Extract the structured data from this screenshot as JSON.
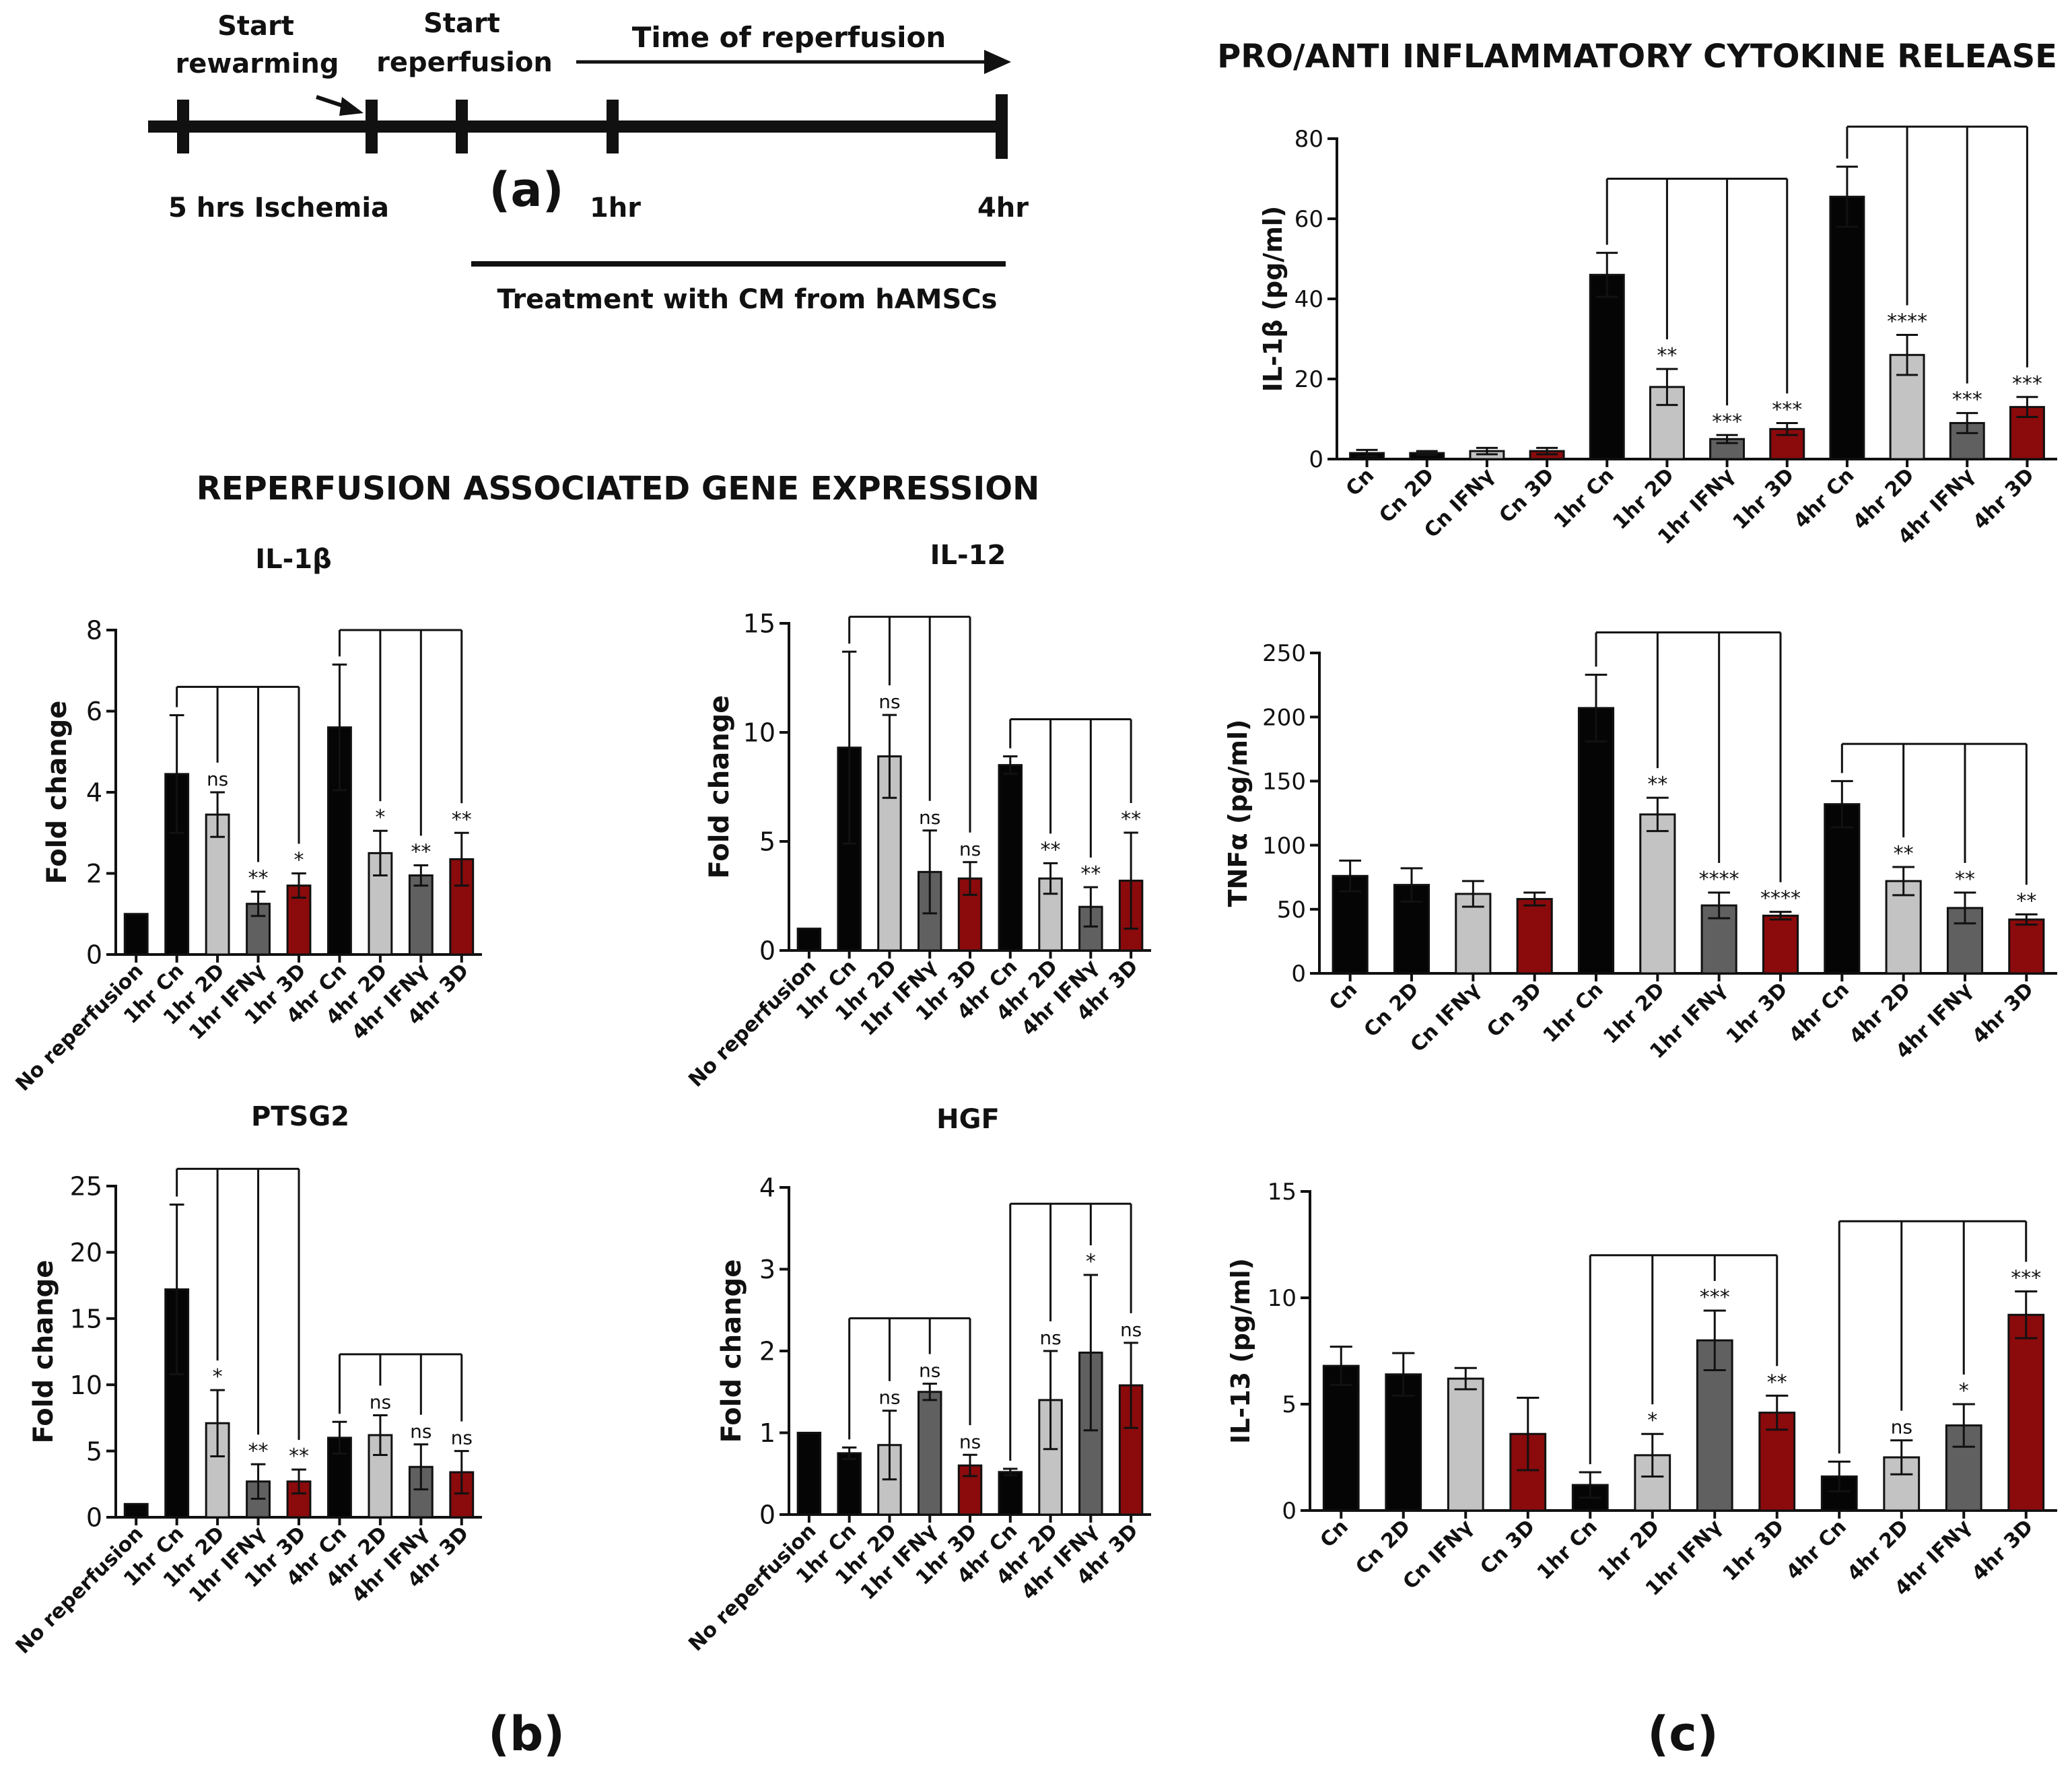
{
  "colors": {
    "black": "#050505",
    "lightgray": "#c3c3c3",
    "darkgray": "#606060",
    "red": "#8b0a0c",
    "axis": "#111111"
  },
  "timeline": {
    "label_start_rewarming": "Start rewarming",
    "label_start_reperfusion": "Start reperfusion",
    "label_time_of_reperfusion": "Time of reperfusion",
    "label_ischemia": "5 hrs Ischemia",
    "label_1hr": "1hr",
    "label_4hr": "4hr",
    "label_treatment": "Treatment with CM from hAMSCs",
    "panel_a": "(a)"
  },
  "section_b_title": "REPERFUSION ASSOCIATED GENE EXPRESSION",
  "section_c_title": "PRO/ANTI INFLAMMATORY CYTOKINE RELEASE",
  "panel_b": "(b)",
  "panel_c": "(c)",
  "chart_data": [
    {
      "id": "il1b_gene",
      "type": "bar",
      "title": "IL-1β",
      "ylabel": "Fold change",
      "ylim": [
        0,
        8
      ],
      "yticks": [
        0,
        2,
        4,
        6,
        8
      ],
      "categories": [
        "No reperfusion",
        "1hr Cn",
        "1hr 2D",
        "1hr IFNγ",
        "1hr 3D",
        "4hr Cn",
        "4hr 2D",
        "4hr IFNγ",
        "4hr 3D"
      ],
      "values": [
        1.0,
        4.45,
        3.45,
        1.25,
        1.7,
        5.6,
        2.5,
        1.95,
        2.35
      ],
      "errors": [
        0,
        1.45,
        0.55,
        0.3,
        0.3,
        1.55,
        0.55,
        0.25,
        0.65
      ],
      "colors": [
        "black",
        "black",
        "lightgray",
        "darkgray",
        "red",
        "black",
        "lightgray",
        "darkgray",
        "red"
      ],
      "significance": [
        "",
        "",
        "ns",
        "**",
        "*",
        "",
        "*",
        "**",
        "**"
      ],
      "brackets": [
        {
          "from": 1,
          "to": [
            2,
            3,
            4
          ],
          "level": 6.6
        },
        {
          "from": 5,
          "to": [
            6,
            7,
            8
          ],
          "level": 8.0
        }
      ]
    },
    {
      "id": "il12_gene",
      "type": "bar",
      "title": "IL-12",
      "ylabel": "Fold change",
      "ylim": [
        0,
        15
      ],
      "yticks": [
        0,
        5,
        10,
        15
      ],
      "categories": [
        "No reperfusion",
        "1hr Cn",
        "1hr 2D",
        "1hr IFNγ",
        "1hr 3D",
        "4hr Cn",
        "4hr 2D",
        "4hr IFNγ",
        "4hr 3D"
      ],
      "values": [
        1.0,
        9.3,
        8.9,
        3.6,
        3.3,
        8.5,
        3.3,
        2.0,
        3.2
      ],
      "errors": [
        0,
        4.4,
        1.9,
        1.9,
        0.75,
        0.4,
        0.7,
        0.9,
        2.2
      ],
      "colors": [
        "black",
        "black",
        "lightgray",
        "darkgray",
        "red",
        "black",
        "lightgray",
        "darkgray",
        "red"
      ],
      "significance": [
        "",
        "",
        "ns",
        "ns",
        "ns",
        "",
        "**",
        "**",
        "**"
      ],
      "brackets": [
        {
          "from": 1,
          "to": [
            2,
            3,
            4
          ],
          "level": 15.3
        },
        {
          "from": 5,
          "to": [
            6,
            7,
            8
          ],
          "level": 10.6
        }
      ]
    },
    {
      "id": "ptsg2_gene",
      "type": "bar",
      "title": "PTSG2",
      "ylabel": "Fold change",
      "ylim": [
        0,
        25
      ],
      "yticks": [
        0,
        5,
        10,
        15,
        20,
        25
      ],
      "categories": [
        "No reperfusion",
        "1hr Cn",
        "1hr 2D",
        "1hr IFNγ",
        "1hr 3D",
        "4hr Cn",
        "4hr 2D",
        "4hr IFNγ",
        "4hr 3D"
      ],
      "values": [
        1.0,
        17.2,
        7.1,
        2.7,
        2.7,
        6.0,
        6.2,
        3.8,
        3.4
      ],
      "errors": [
        0,
        6.4,
        2.5,
        1.3,
        0.9,
        1.2,
        1.5,
        1.7,
        1.6
      ],
      "colors": [
        "black",
        "black",
        "lightgray",
        "darkgray",
        "red",
        "black",
        "lightgray",
        "darkgray",
        "red"
      ],
      "significance": [
        "",
        "",
        "*",
        "**",
        "**",
        "",
        "ns",
        "ns",
        "ns"
      ],
      "brackets": [
        {
          "from": 1,
          "to": [
            2,
            3,
            4
          ],
          "level": 26.3
        },
        {
          "from": 5,
          "to": [
            6,
            7,
            8
          ],
          "level": 12.3
        }
      ]
    },
    {
      "id": "hgf_gene",
      "type": "bar",
      "title": "HGF",
      "ylabel": "Fold change",
      "ylim": [
        0,
        4
      ],
      "yticks": [
        0,
        1,
        2,
        3,
        4
      ],
      "categories": [
        "No reperfusion",
        "1hr Cn",
        "1hr 2D",
        "1hr IFNγ",
        "1hr 3D",
        "4hr Cn",
        "4hr 2D",
        "4hr IFNγ",
        "4hr 3D"
      ],
      "values": [
        1.0,
        0.75,
        0.85,
        1.5,
        0.6,
        0.52,
        1.4,
        1.98,
        1.58
      ],
      "errors": [
        0,
        0.07,
        0.42,
        0.1,
        0.13,
        0.04,
        0.6,
        0.95,
        0.52
      ],
      "colors": [
        "black",
        "black",
        "lightgray",
        "darkgray",
        "red",
        "black",
        "lightgray",
        "darkgray",
        "red"
      ],
      "significance": [
        "",
        "",
        "ns",
        "ns",
        "ns",
        "",
        "ns",
        "*",
        "ns"
      ],
      "brackets": [
        {
          "from": 1,
          "to": [
            2,
            3,
            4
          ],
          "level": 2.4
        },
        {
          "from": 5,
          "to": [
            6,
            7,
            8
          ],
          "level": 3.8
        }
      ]
    },
    {
      "id": "il1b_release",
      "type": "bar",
      "title": "",
      "ylabel": "IL-1β (pg/ml)",
      "ylim": [
        0,
        80
      ],
      "yticks": [
        0,
        20,
        40,
        60,
        80
      ],
      "categories": [
        "Cn",
        "Cn 2D",
        "Cn IFNγ",
        "Cn 3D",
        "1hr Cn",
        "1hr 2D",
        "1hr IFNγ",
        "1hr 3D",
        "4hr Cn",
        "4hr 2D",
        "4hr IFNγ",
        "4hr 3D"
      ],
      "values": [
        1.5,
        1.5,
        2.0,
        2.0,
        46.0,
        18.0,
        5.0,
        7.5,
        65.5,
        26.0,
        9.0,
        13.0
      ],
      "errors": [
        0.8,
        0.5,
        0.8,
        0.8,
        5.5,
        4.5,
        1.0,
        1.5,
        7.5,
        5.0,
        2.5,
        2.5
      ],
      "colors": [
        "black",
        "black",
        "lightgray",
        "red",
        "black",
        "lightgray",
        "darkgray",
        "red",
        "black",
        "lightgray",
        "darkgray",
        "red"
      ],
      "significance": [
        "",
        "",
        "",
        "",
        "",
        "**",
        "***",
        "***",
        "",
        "****",
        "***",
        "***"
      ],
      "brackets": [
        {
          "from": 4,
          "to": [
            5,
            6,
            7
          ],
          "level": 70.0
        },
        {
          "from": 8,
          "to": [
            9,
            10,
            11
          ],
          "level": 83.0
        }
      ]
    },
    {
      "id": "tnfa_release",
      "type": "bar",
      "title": "",
      "ylabel": "TNFα (pg/ml)",
      "ylim": [
        0,
        250
      ],
      "yticks": [
        0,
        50,
        100,
        150,
        200,
        250
      ],
      "categories": [
        "Cn",
        "Cn 2D",
        "Cn IFNγ",
        "Cn 3D",
        "1hr Cn",
        "1hr 2D",
        "1hr IFNγ",
        "1hr 3D",
        "4hr Cn",
        "4hr 2D",
        "4hr IFNγ",
        "4hr 3D"
      ],
      "values": [
        76,
        69,
        62,
        58,
        207,
        124,
        53,
        45,
        132,
        72,
        51,
        42
      ],
      "errors": [
        12,
        13,
        10,
        5,
        26,
        13,
        10,
        3,
        18,
        11,
        12,
        4
      ],
      "colors": [
        "black",
        "black",
        "lightgray",
        "red",
        "black",
        "lightgray",
        "darkgray",
        "red",
        "black",
        "lightgray",
        "darkgray",
        "red"
      ],
      "significance": [
        "",
        "",
        "",
        "",
        "",
        "**",
        "****",
        "****",
        "",
        "**",
        "**",
        "**"
      ],
      "brackets": [
        {
          "from": 4,
          "to": [
            5,
            6,
            7
          ],
          "level": 266
        },
        {
          "from": 8,
          "to": [
            9,
            10,
            11
          ],
          "level": 179
        }
      ]
    },
    {
      "id": "il13_release",
      "type": "bar",
      "title": "",
      "ylabel": "IL-13 (pg/ml)",
      "ylim": [
        0,
        15
      ],
      "yticks": [
        0,
        5,
        10,
        15
      ],
      "categories": [
        "Cn",
        "Cn 2D",
        "Cn IFNγ",
        "Cn 3D",
        "1hr Cn",
        "1hr 2D",
        "1hr IFNγ",
        "1hr 3D",
        "4hr Cn",
        "4hr 2D",
        "4hr IFNγ",
        "4hr 3D"
      ],
      "values": [
        6.8,
        6.4,
        6.2,
        3.6,
        1.2,
        2.6,
        8.0,
        4.6,
        1.6,
        2.5,
        4.0,
        9.2
      ],
      "errors": [
        0.9,
        1.0,
        0.5,
        1.7,
        0.6,
        1.0,
        1.4,
        0.8,
        0.7,
        0.8,
        1.0,
        1.1
      ],
      "colors": [
        "black",
        "black",
        "lightgray",
        "red",
        "black",
        "lightgray",
        "darkgray",
        "red",
        "black",
        "lightgray",
        "darkgray",
        "red"
      ],
      "significance": [
        "",
        "",
        "",
        "",
        "",
        "*",
        "***",
        "**",
        "",
        "ns",
        "*",
        "***"
      ],
      "brackets": [
        {
          "from": 4,
          "to": [
            5,
            6,
            7
          ],
          "level": 12.0
        },
        {
          "from": 8,
          "to": [
            9,
            10,
            11
          ],
          "level": 13.6
        }
      ]
    }
  ]
}
